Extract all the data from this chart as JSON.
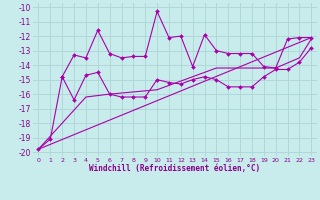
{
  "xlabel": "Windchill (Refroidissement éolien,°C)",
  "bg_color": "#c8ecec",
  "grid_color": "#b0d8d8",
  "line_color": "#aa00aa",
  "xlim": [
    -0.5,
    23.5
  ],
  "ylim": [
    -20.3,
    -9.7
  ],
  "yticks": [
    -20,
    -19,
    -18,
    -17,
    -16,
    -15,
    -14,
    -13,
    -12,
    -11,
    -10
  ],
  "xticks": [
    0,
    1,
    2,
    3,
    4,
    5,
    6,
    7,
    8,
    9,
    10,
    11,
    12,
    13,
    14,
    15,
    16,
    17,
    18,
    19,
    20,
    21,
    22,
    23
  ],
  "line1_x": [
    2,
    3,
    4,
    5,
    6,
    7,
    8,
    9,
    10,
    11,
    12,
    13,
    14,
    15,
    16,
    17,
    18,
    19,
    20,
    21,
    22,
    23
  ],
  "line1_y": [
    -14.8,
    -13.3,
    -13.5,
    -11.6,
    -13.2,
    -13.5,
    -13.4,
    -13.4,
    -10.3,
    -12.1,
    -12.0,
    -14.1,
    -11.9,
    -13.0,
    -13.2,
    -13.2,
    -13.2,
    -14.1,
    -14.2,
    -12.2,
    -12.1,
    -12.1
  ],
  "line2_x": [
    0,
    1,
    2,
    3,
    4,
    5,
    6,
    7,
    8,
    9,
    10,
    11,
    12,
    13,
    14,
    15,
    16,
    17,
    18,
    19,
    20,
    21,
    22,
    23
  ],
  "line2_y": [
    -19.8,
    -19.1,
    -14.8,
    -16.4,
    -14.7,
    -14.5,
    -16.0,
    -16.2,
    -16.2,
    -16.2,
    -15.0,
    -15.2,
    -15.3,
    -15.0,
    -14.8,
    -15.0,
    -15.5,
    -15.5,
    -15.5,
    -14.8,
    -14.3,
    -14.3,
    -13.8,
    -12.8
  ],
  "trend1_x": [
    0,
    23
  ],
  "trend1_y": [
    -19.8,
    -12.1
  ],
  "trend2_x": [
    0,
    4,
    6,
    10,
    15,
    20,
    22,
    23
  ],
  "trend2_y": [
    -19.8,
    -16.2,
    -16.0,
    -15.7,
    -14.2,
    -14.2,
    -13.5,
    -12.2
  ]
}
